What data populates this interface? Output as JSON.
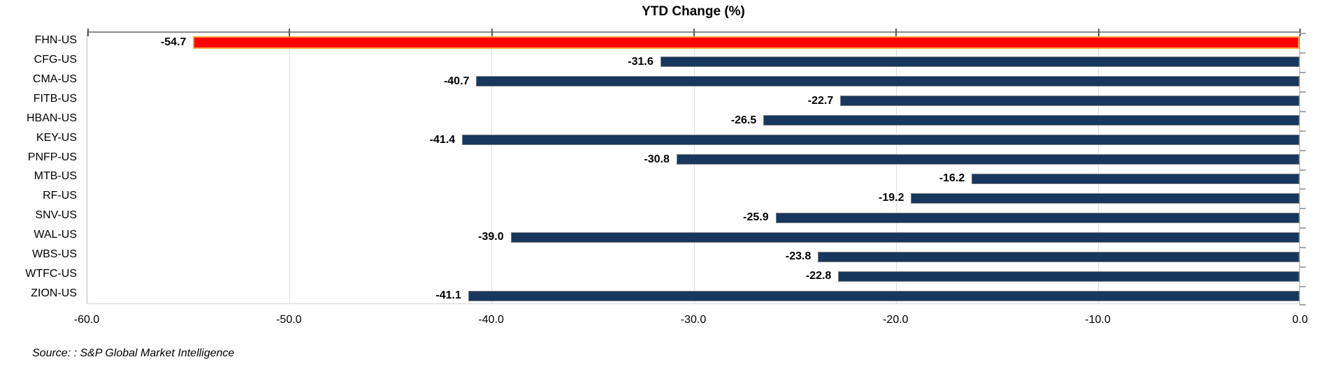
{
  "chart_data": {
    "type": "bar",
    "orientation": "horizontal",
    "title": "YTD Change (%)",
    "categories": [
      "FHN-US",
      "CFG-US",
      "CMA-US",
      "FITB-US",
      "HBAN-US",
      "KEY-US",
      "PNFP-US",
      "MTB-US",
      "RF-US",
      "SNV-US",
      "WAL-US",
      "WBS-US",
      "WTFC-US",
      "ZION-US"
    ],
    "values": [
      -54.7,
      -31.6,
      -40.7,
      -22.7,
      -26.5,
      -41.4,
      -30.8,
      -16.2,
      -19.2,
      -25.9,
      -39.0,
      -23.8,
      -22.8,
      -41.1
    ],
    "value_labels": [
      "-54.7",
      "-31.6",
      "-40.7",
      "-22.7",
      "-26.5",
      "-41.4",
      "-30.8",
      "-16.2",
      "-19.2",
      "-25.9",
      "-39.0",
      "-23.8",
      "-22.8",
      "-41.1"
    ],
    "xlabel": "",
    "ylabel": "",
    "xlim": [
      -60,
      0
    ],
    "x_ticks": [
      "-60.0",
      "-50.0",
      "-40.0",
      "-30.0",
      "-20.0",
      "-10.0",
      "0.0"
    ],
    "x_tick_values": [
      -60,
      -50,
      -40,
      -30,
      -20,
      -10,
      0
    ],
    "grid": "vertical-gridlines-on",
    "legend": "none",
    "highlight_category": "FHN-US",
    "colors": {
      "bar_fill": "#17375E",
      "bar_border": "#808080",
      "highlight_fill": "#FB0306",
      "highlight_border": "#F9A23C",
      "gridline": "#DEDEDE",
      "tick": "#595959",
      "text": "#000000",
      "background": "#FFFFFF"
    },
    "source": "Source: : S&P Global Market Intelligence"
  }
}
